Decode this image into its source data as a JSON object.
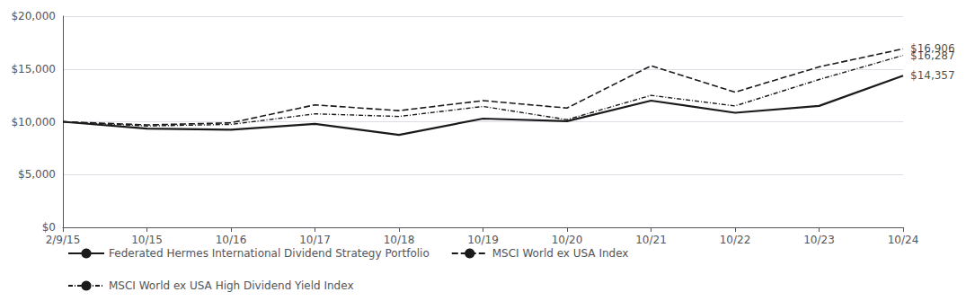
{
  "chart_data": {
    "type": "line",
    "categories": [
      "2/9/15",
      "10/15",
      "10/16",
      "10/17",
      "10/18",
      "10/19",
      "10/20",
      "10/21",
      "10/22",
      "10/23",
      "10/24"
    ],
    "series": [
      {
        "name": "Federated Hermes International Dividend Strategy Portfolio",
        "color": "#1a1a1a",
        "line_style": "solid",
        "values": [
          10000,
          9350,
          9250,
          9800,
          8750,
          10300,
          10050,
          12000,
          10850,
          11500,
          14357
        ]
      },
      {
        "name": "MSCI World ex USA Index",
        "color": "#1a1a1a",
        "line_style": "dashed",
        "values": [
          10000,
          9700,
          9900,
          11600,
          11050,
          12000,
          11300,
          15300,
          12800,
          15200,
          16906
        ]
      },
      {
        "name": "MSCI World ex USA High Dividend Yield Index",
        "color": "#1a1a1a",
        "line_style": "dashdot",
        "values": [
          10000,
          9600,
          9750,
          10750,
          10500,
          11450,
          10200,
          12500,
          11500,
          14000,
          16287
        ]
      }
    ],
    "annotations": [
      {
        "text": "$16,906",
        "x": "10/24",
        "y": 16906
      },
      {
        "text": "$16,287",
        "x": "10/24",
        "y": 16287
      },
      {
        "text": "$14,357",
        "x": "10/24",
        "y": 14357
      }
    ],
    "ylim": [
      0,
      20000
    ],
    "yticks": [
      {
        "value": 0,
        "label": "$0"
      },
      {
        "value": 5000,
        "label": "$5,000"
      },
      {
        "value": 10000,
        "label": "$10,000"
      },
      {
        "value": 15000,
        "label": "$15,000"
      },
      {
        "value": 20000,
        "label": "$20,000"
      }
    ],
    "grid": true,
    "legend": "lower left"
  }
}
